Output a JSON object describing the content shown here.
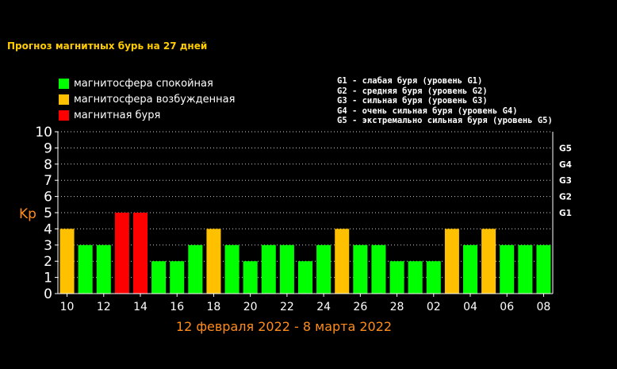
{
  "title": "Прогноз магнитных бурь на 27 дней",
  "legend": [
    {
      "label": "магнитосфера спокойная",
      "color": "#00ff00"
    },
    {
      "label": "магнитосфера возбужденная",
      "color": "#ffc000"
    },
    {
      "label": "магнитная буря",
      "color": "#ff0000"
    }
  ],
  "storm_levels": [
    "G1 - слабая буря (уровень G1)",
    "G2 - средняя буря (уровень G2)",
    "G3 - сильная буря (уровень G3)",
    "G4 - очень сильная буря (уровень G4)",
    "G5 - экстремально сильная буря (уровень G5)"
  ],
  "chart_data": {
    "type": "bar",
    "ylabel": "Kp",
    "xlabel": "12 февраля 2022 - 8 марта 2022",
    "ylim": [
      0,
      10
    ],
    "yticks": [
      "0",
      "1",
      "2",
      "3",
      "4",
      "5",
      "6",
      "7",
      "8",
      "9",
      "10"
    ],
    "right_ticks": [
      {
        "value": 5,
        "label": "G1"
      },
      {
        "value": 6,
        "label": "G2"
      },
      {
        "value": 7,
        "label": "G3"
      },
      {
        "value": 8,
        "label": "G4"
      },
      {
        "value": 9,
        "label": "G5"
      }
    ],
    "x_tick_labels": [
      "10",
      "12",
      "14",
      "16",
      "18",
      "20",
      "22",
      "24",
      "26",
      "28",
      "02",
      "04",
      "06",
      "08"
    ],
    "values": [
      4,
      3,
      3,
      5,
      5,
      2,
      2,
      3,
      4,
      3,
      2,
      3,
      3,
      2,
      3,
      4,
      3,
      3,
      2,
      2,
      2,
      4,
      3,
      4,
      3,
      3,
      3
    ],
    "colors": {
      "quiet": "#00ff00",
      "excited": "#ffc000",
      "storm": "#ff0000",
      "axis_label": "#ff8c1a"
    },
    "grid": true
  }
}
